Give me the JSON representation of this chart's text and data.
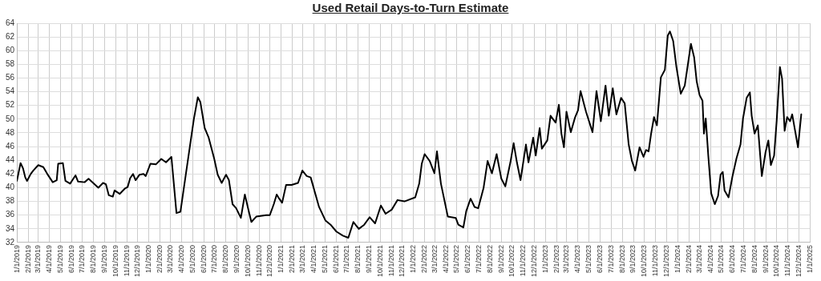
{
  "chart_data": {
    "type": "line",
    "title": "Used Retail Days-to-Turn Estimate",
    "color": "#000000",
    "grid": true,
    "legend": false,
    "marker": "none",
    "line_style": "solid",
    "ylim": [
      32,
      64
    ],
    "yticks": [
      32,
      34,
      36,
      38,
      40,
      42,
      44,
      46,
      48,
      50,
      52,
      54,
      56,
      58,
      60,
      62,
      64
    ],
    "xlim": [
      "2019-01-01",
      "2025-01-01"
    ],
    "xticks": [
      {
        "value": "2019-01-01",
        "label": "1/1/2019"
      },
      {
        "value": "2019-02-01",
        "label": "2/1/2019"
      },
      {
        "value": "2019-03-01",
        "label": "3/1/2019"
      },
      {
        "value": "2019-04-01",
        "label": "4/1/2019"
      },
      {
        "value": "2019-05-01",
        "label": "5/1/2019"
      },
      {
        "value": "2019-06-01",
        "label": "6/1/2019"
      },
      {
        "value": "2019-07-01",
        "label": "7/1/2019"
      },
      {
        "value": "2019-08-01",
        "label": "8/1/2019"
      },
      {
        "value": "2019-09-01",
        "label": "9/1/2019"
      },
      {
        "value": "2019-10-01",
        "label": "10/1/2019"
      },
      {
        "value": "2019-11-01",
        "label": "11/1/2019"
      },
      {
        "value": "2019-12-01",
        "label": "12/1/2019"
      },
      {
        "value": "2020-01-01",
        "label": "1/1/2020"
      },
      {
        "value": "2020-02-01",
        "label": "2/1/2020"
      },
      {
        "value": "2020-03-01",
        "label": "3/1/2020"
      },
      {
        "value": "2020-04-01",
        "label": "4/1/2020"
      },
      {
        "value": "2020-05-01",
        "label": "5/1/2020"
      },
      {
        "value": "2020-06-01",
        "label": "6/1/2020"
      },
      {
        "value": "2020-07-01",
        "label": "7/1/2020"
      },
      {
        "value": "2020-08-01",
        "label": "8/1/2020"
      },
      {
        "value": "2020-09-01",
        "label": "9/1/2020"
      },
      {
        "value": "2020-10-01",
        "label": "10/1/2020"
      },
      {
        "value": "2020-11-01",
        "label": "11/1/2020"
      },
      {
        "value": "2020-12-01",
        "label": "12/1/2020"
      },
      {
        "value": "2021-01-01",
        "label": "1/1/2021"
      },
      {
        "value": "2021-02-01",
        "label": "2/1/2021"
      },
      {
        "value": "2021-03-01",
        "label": "3/1/2021"
      },
      {
        "value": "2021-04-01",
        "label": "4/1/2021"
      },
      {
        "value": "2021-05-01",
        "label": "5/1/2021"
      },
      {
        "value": "2021-06-01",
        "label": "6/1/2021"
      },
      {
        "value": "2021-07-01",
        "label": "7/1/2021"
      },
      {
        "value": "2021-08-01",
        "label": "8/1/2021"
      },
      {
        "value": "2021-09-01",
        "label": "9/1/2021"
      },
      {
        "value": "2021-10-01",
        "label": "10/1/2021"
      },
      {
        "value": "2021-11-01",
        "label": "11/1/2021"
      },
      {
        "value": "2021-12-01",
        "label": "12/1/2021"
      },
      {
        "value": "2022-01-01",
        "label": "1/1/2022"
      },
      {
        "value": "2022-02-01",
        "label": "2/1/2022"
      },
      {
        "value": "2022-03-01",
        "label": "3/1/2022"
      },
      {
        "value": "2022-04-01",
        "label": "4/1/2022"
      },
      {
        "value": "2022-05-01",
        "label": "5/1/2022"
      },
      {
        "value": "2022-06-01",
        "label": "6/1/2022"
      },
      {
        "value": "2022-07-01",
        "label": "7/1/2022"
      },
      {
        "value": "2022-08-01",
        "label": "8/1/2022"
      },
      {
        "value": "2022-09-01",
        "label": "9/1/2022"
      },
      {
        "value": "2022-10-01",
        "label": "10/1/2022"
      },
      {
        "value": "2022-11-01",
        "label": "11/1/2022"
      },
      {
        "value": "2022-12-01",
        "label": "12/1/2022"
      },
      {
        "value": "2023-01-01",
        "label": "1/1/2023"
      },
      {
        "value": "2023-02-01",
        "label": "2/1/2023"
      },
      {
        "value": "2023-03-01",
        "label": "3/1/2023"
      },
      {
        "value": "2023-04-01",
        "label": "4/1/2023"
      },
      {
        "value": "2023-05-01",
        "label": "5/1/2023"
      },
      {
        "value": "2023-06-01",
        "label": "6/1/2023"
      },
      {
        "value": "2023-07-01",
        "label": "7/1/2023"
      },
      {
        "value": "2023-08-01",
        "label": "8/1/2023"
      },
      {
        "value": "2023-09-01",
        "label": "9/1/2023"
      },
      {
        "value": "2023-10-01",
        "label": "10/1/2023"
      },
      {
        "value": "2023-11-01",
        "label": "11/1/2023"
      },
      {
        "value": "2023-12-01",
        "label": "12/1/2023"
      },
      {
        "value": "2024-01-01",
        "label": "1/1/2024"
      },
      {
        "value": "2024-02-01",
        "label": "2/1/2024"
      },
      {
        "value": "2024-03-01",
        "label": "3/1/2024"
      },
      {
        "value": "2024-04-01",
        "label": "4/1/2024"
      },
      {
        "value": "2024-05-01",
        "label": "5/1/2024"
      },
      {
        "value": "2024-06-01",
        "label": "6/1/2024"
      },
      {
        "value": "2024-07-01",
        "label": "7/1/2024"
      },
      {
        "value": "2024-08-01",
        "label": "8/1/2024"
      },
      {
        "value": "2024-09-01",
        "label": "9/1/2024"
      },
      {
        "value": "2024-10-01",
        "label": "10/1/2024"
      },
      {
        "value": "2024-11-01",
        "label": "11/1/2024"
      },
      {
        "value": "2024-12-01",
        "label": "12/1/2024"
      },
      {
        "value": "2025-01-01",
        "label": "1/1/2025"
      }
    ],
    "x": [
      "2019-01-01",
      "2019-01-11",
      "2019-01-18",
      "2019-01-24",
      "2019-01-29",
      "2019-02-08",
      "2019-02-15",
      "2019-03-01",
      "2019-03-15",
      "2019-03-26",
      "2019-04-10",
      "2019-04-21",
      "2019-04-25",
      "2019-05-08",
      "2019-05-15",
      "2019-05-28",
      "2019-06-12",
      "2019-06-19",
      "2019-07-07",
      "2019-07-18",
      "2019-08-14",
      "2019-08-27",
      "2019-09-04",
      "2019-09-12",
      "2019-09-23",
      "2019-09-28",
      "2019-10-12",
      "2019-10-27",
      "2019-11-03",
      "2019-11-10",
      "2019-11-18",
      "2019-11-25",
      "2019-12-06",
      "2019-12-17",
      "2019-12-23",
      "2020-01-05",
      "2020-01-20",
      "2020-02-04",
      "2020-02-17",
      "2020-03-03",
      "2020-03-17",
      "2020-03-28",
      "2020-04-12",
      "2020-04-23",
      "2020-05-04",
      "2020-05-15",
      "2020-05-22",
      "2020-06-03",
      "2020-06-14",
      "2020-06-29",
      "2020-07-09",
      "2020-07-20",
      "2020-08-01",
      "2020-08-09",
      "2020-08-19",
      "2020-08-29",
      "2020-09-11",
      "2020-09-22",
      "2020-09-30",
      "2020-10-10",
      "2020-10-24",
      "2020-11-20",
      "2020-11-30",
      "2020-12-11",
      "2020-12-19",
      "2020-12-26",
      "2021-01-03",
      "2021-01-14",
      "2021-01-29",
      "2021-02-16",
      "2021-02-28",
      "2021-03-12",
      "2021-03-23",
      "2021-04-15",
      "2021-05-03",
      "2021-05-17",
      "2021-06-02",
      "2021-06-20",
      "2021-07-05",
      "2021-07-19",
      "2021-08-03",
      "2021-08-18",
      "2021-09-02",
      "2021-09-17",
      "2021-10-03",
      "2021-10-16",
      "2021-11-02",
      "2021-11-18",
      "2021-12-07",
      "2022-01-06",
      "2022-01-17",
      "2022-01-24",
      "2022-02-01",
      "2022-02-15",
      "2022-02-28",
      "2022-03-07",
      "2022-03-18",
      "2022-04-06",
      "2022-04-28",
      "2022-05-05",
      "2022-05-19",
      "2022-05-27",
      "2022-06-08",
      "2022-06-19",
      "2022-06-29",
      "2022-07-14",
      "2022-07-25",
      "2022-08-06",
      "2022-08-19",
      "2022-09-01",
      "2022-09-12",
      "2022-09-26",
      "2022-10-05",
      "2022-10-14",
      "2022-10-24",
      "2022-11-08",
      "2022-11-15",
      "2022-11-28",
      "2022-12-05",
      "2022-12-16",
      "2022-12-22",
      "2023-01-06",
      "2023-01-15",
      "2023-01-29",
      "2023-02-07",
      "2023-02-14",
      "2023-02-21",
      "2023-02-28",
      "2023-03-12",
      "2023-03-24",
      "2023-04-01",
      "2023-04-08",
      "2023-04-23",
      "2023-05-11",
      "2023-05-22",
      "2023-06-03",
      "2023-06-16",
      "2023-06-25",
      "2023-07-06",
      "2023-07-16",
      "2023-07-29",
      "2023-08-08",
      "2023-08-19",
      "2023-08-28",
      "2023-09-06",
      "2023-09-18",
      "2023-09-29",
      "2023-10-06",
      "2023-10-13",
      "2023-10-20",
      "2023-10-28",
      "2023-11-05",
      "2023-11-16",
      "2023-11-27",
      "2023-12-05",
      "2023-12-11",
      "2023-12-20",
      "2023-12-29",
      "2024-01-10",
      "2024-01-21",
      "2024-01-28",
      "2024-02-07",
      "2024-02-16",
      "2024-02-23",
      "2024-03-02",
      "2024-03-10",
      "2024-03-14",
      "2024-03-19",
      "2024-03-26",
      "2024-04-03",
      "2024-04-13",
      "2024-04-22",
      "2024-04-29",
      "2024-05-05",
      "2024-05-10",
      "2024-05-21",
      "2024-06-01",
      "2024-06-12",
      "2024-06-23",
      "2024-06-30",
      "2024-07-10",
      "2024-07-19",
      "2024-07-24",
      "2024-08-01",
      "2024-08-10",
      "2024-08-21",
      "2024-08-31",
      "2024-09-08",
      "2024-09-15",
      "2024-09-24",
      "2024-10-01",
      "2024-10-10",
      "2024-10-16",
      "2024-10-23",
      "2024-10-30",
      "2024-11-07",
      "2024-11-13",
      "2024-11-21",
      "2024-11-29",
      "2024-12-08"
    ],
    "values": [
      41.0,
      43.6,
      42.8,
      41.5,
      41.0,
      42.0,
      42.5,
      43.3,
      43.0,
      42.0,
      40.8,
      41.1,
      43.5,
      43.6,
      41.0,
      40.6,
      41.8,
      40.9,
      40.8,
      41.3,
      40.0,
      40.7,
      40.5,
      38.9,
      38.7,
      39.6,
      39.1,
      39.9,
      40.1,
      41.4,
      42.0,
      41.1,
      41.9,
      42.0,
      41.7,
      43.5,
      43.4,
      44.2,
      43.7,
      44.5,
      36.3,
      36.5,
      42.0,
      46.0,
      50.0,
      53.2,
      52.5,
      48.7,
      47.3,
      44.3,
      41.9,
      40.7,
      41.9,
      41.1,
      37.6,
      37.0,
      35.6,
      39.0,
      37.2,
      35.0,
      35.8,
      36.0,
      36.0,
      37.6,
      39.0,
      38.4,
      37.8,
      40.4,
      40.4,
      40.7,
      42.5,
      41.7,
      41.5,
      37.2,
      35.2,
      34.6,
      33.6,
      33.0,
      32.7,
      35.0,
      34.0,
      34.6,
      35.7,
      34.8,
      37.4,
      36.2,
      36.8,
      38.2,
      38.0,
      38.6,
      40.6,
      43.5,
      44.9,
      43.9,
      42.1,
      45.3,
      40.6,
      35.8,
      35.6,
      34.6,
      34.2,
      36.6,
      38.4,
      37.2,
      37.0,
      40.0,
      43.9,
      42.1,
      44.9,
      41.3,
      40.2,
      43.7,
      46.5,
      43.7,
      41.1,
      46.3,
      43.7,
      47.3,
      44.7,
      48.7,
      45.7,
      46.9,
      50.5,
      49.5,
      52.1,
      47.9,
      45.9,
      51.1,
      48.1,
      50.3,
      51.3,
      54.1,
      51.1,
      48.1,
      54.1,
      49.7,
      54.9,
      50.5,
      54.5,
      50.7,
      53.1,
      52.3,
      46.3,
      43.9,
      42.5,
      45.9,
      44.5,
      45.5,
      45.3,
      47.9,
      50.3,
      49.1,
      56.1,
      57.2,
      62.2,
      62.8,
      61.4,
      57.6,
      53.7,
      54.9,
      57.4,
      61.0,
      59.0,
      55.5,
      53.5,
      52.7,
      47.9,
      50.1,
      44.7,
      39.2,
      37.6,
      38.8,
      41.9,
      42.3,
      39.6,
      38.6,
      41.7,
      44.3,
      46.3,
      50.1,
      53.1,
      53.9,
      50.5,
      47.9,
      49.1,
      41.7,
      45.1,
      46.9,
      43.3,
      44.7,
      49.7,
      57.6,
      55.9,
      48.3,
      50.3,
      49.7,
      50.7,
      48.3,
      45.9,
      50.7
    ]
  }
}
